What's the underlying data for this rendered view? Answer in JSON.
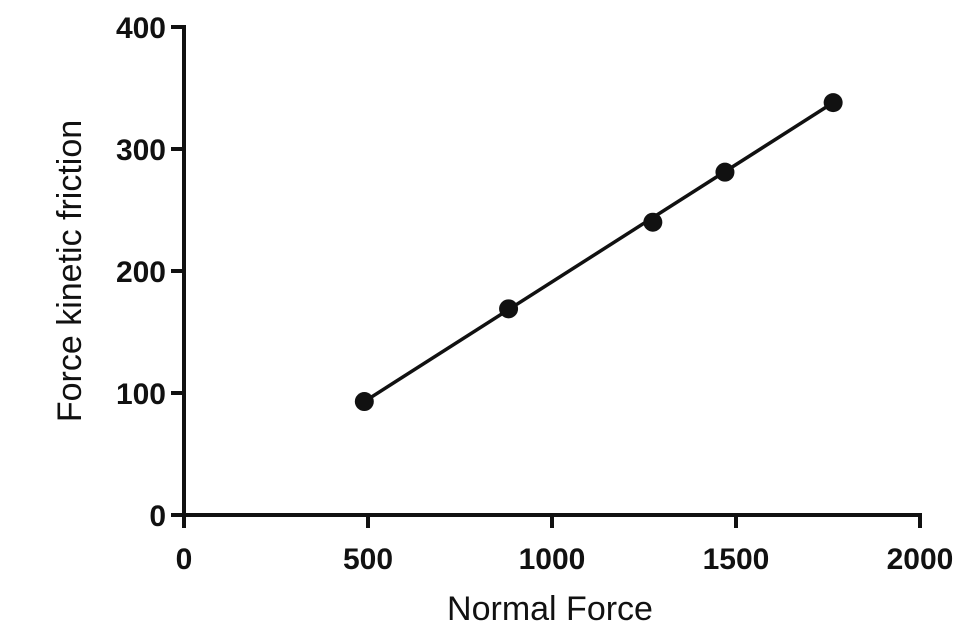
{
  "chart_data": {
    "type": "scatter",
    "xlabel": "Normal Force",
    "ylabel": "Force kinetic friction",
    "xlim": [
      0,
      2000
    ],
    "ylim": [
      0,
      400
    ],
    "x_ticks": [
      0,
      500,
      1000,
      1500,
      2000
    ],
    "y_ticks": [
      0,
      100,
      200,
      300,
      400
    ],
    "x_tick_labels": [
      "0",
      "500",
      "1000",
      "1500",
      "2000"
    ],
    "y_tick_labels": [
      "0",
      "100",
      "200",
      "300",
      "400"
    ],
    "grid": false,
    "series": [
      {
        "x": [
          490,
          882,
          1274,
          1470,
          1764
        ],
        "y": [
          93,
          169,
          240,
          281,
          338
        ]
      }
    ],
    "trendline": {
      "x": [
        490,
        1764
      ],
      "y": [
        93,
        338
      ]
    },
    "colors": {
      "marker": "#111111",
      "line": "#111111",
      "axis": "#111111"
    }
  }
}
